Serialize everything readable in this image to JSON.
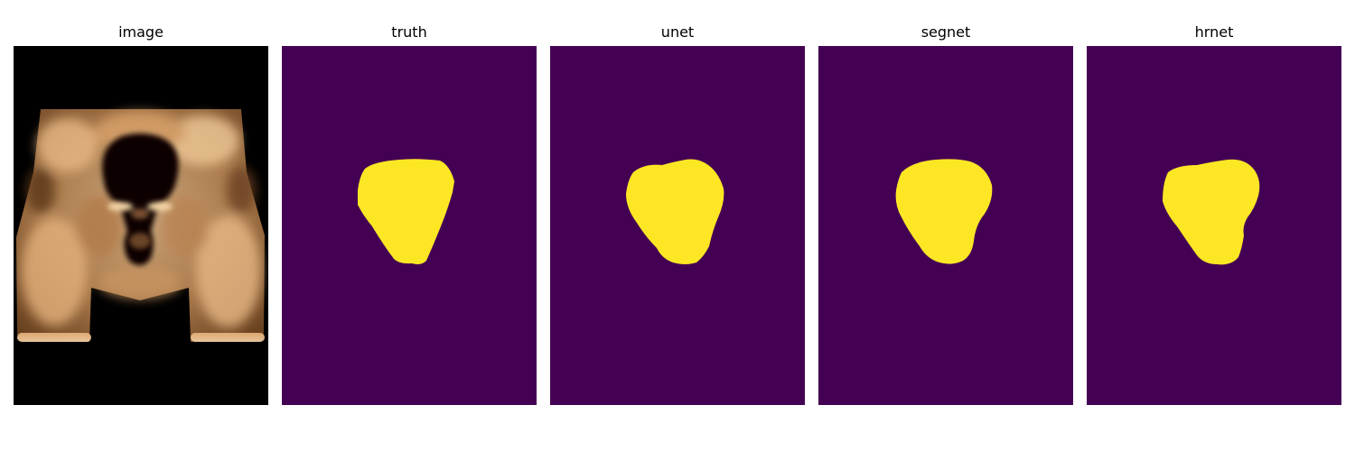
{
  "figure": {
    "background": "#ffffff",
    "colors": {
      "mask_background": "#440154",
      "mask_foreground": "#fde725",
      "ultrasound_tone": "#e7b785"
    },
    "panels": [
      {
        "title": "image",
        "kind": "ultrasound"
      },
      {
        "title": "truth",
        "kind": "mask",
        "shape": "truth"
      },
      {
        "title": "unet",
        "kind": "mask",
        "shape": "unet"
      },
      {
        "title": "segnet",
        "kind": "mask",
        "shape": "segnet"
      },
      {
        "title": "hrnet",
        "kind": "mask",
        "shape": "hrnet"
      }
    ]
  }
}
